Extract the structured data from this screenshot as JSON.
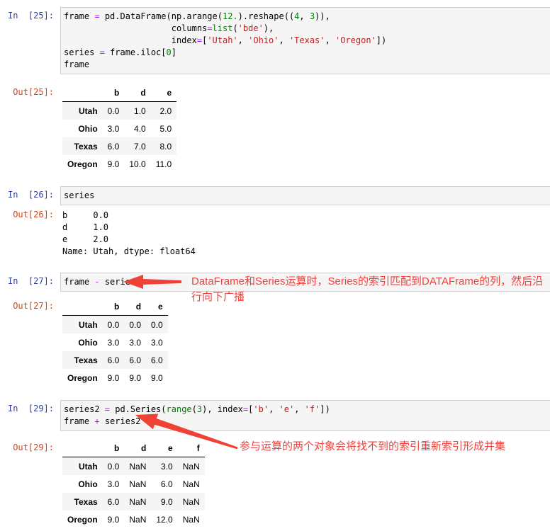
{
  "palette": {
    "in_prompt": "#303F9F",
    "out_prompt": "#D84315",
    "annotation_red": "#f1403b",
    "operator": "#AA22FF",
    "number": "#008000",
    "builtin": "#008000",
    "string": "#BA2121",
    "input_bg": "#f5f5f5",
    "input_border": "#cfcfcf",
    "row_stripe": "#f5f5f5"
  },
  "cells": [
    {
      "prompt": "In  [25]:",
      "code": [
        [
          [
            "frame ",
            "n"
          ],
          [
            "=",
            "o"
          ],
          [
            " pd.DataFrame(np.arange(",
            "n"
          ],
          [
            "12.",
            "m"
          ],
          [
            ").reshape((",
            "n"
          ],
          [
            "4",
            "m"
          ],
          [
            ", ",
            "n"
          ],
          [
            "3",
            "m"
          ],
          [
            ")),",
            "n"
          ]
        ],
        [
          [
            "                     columns",
            "n"
          ],
          [
            "=",
            "o"
          ],
          [
            "list",
            "b"
          ],
          [
            "(",
            "n"
          ],
          [
            "'bde'",
            "s"
          ],
          [
            "),",
            "n"
          ]
        ],
        [
          [
            "                     index",
            "n"
          ],
          [
            "=",
            "o"
          ],
          [
            "[",
            "n"
          ],
          [
            "'Utah'",
            "s"
          ],
          [
            ", ",
            "n"
          ],
          [
            "'Ohio'",
            "s"
          ],
          [
            ", ",
            "n"
          ],
          [
            "'Texas'",
            "s"
          ],
          [
            ", ",
            "n"
          ],
          [
            "'Oregon'",
            "s"
          ],
          [
            "])",
            "n"
          ]
        ],
        [
          [
            "series ",
            "n"
          ],
          [
            "=",
            "o"
          ],
          [
            " frame.iloc[",
            "n"
          ],
          [
            "0",
            "m"
          ],
          [
            "]",
            "n"
          ]
        ],
        [
          [
            "frame",
            "n"
          ]
        ]
      ]
    },
    {
      "prompt": "Out[25]:",
      "table": {
        "columns": [
          "b",
          "d",
          "e"
        ],
        "rows": [
          {
            "index": "Utah",
            "values": [
              "0.0",
              "1.0",
              "2.0"
            ]
          },
          {
            "index": "Ohio",
            "values": [
              "3.0",
              "4.0",
              "5.0"
            ]
          },
          {
            "index": "Texas",
            "values": [
              "6.0",
              "7.0",
              "8.0"
            ]
          },
          {
            "index": "Oregon",
            "values": [
              "9.0",
              "10.0",
              "11.0"
            ]
          }
        ]
      }
    },
    {
      "prompt": "In  [26]:",
      "code": [
        [
          [
            "series",
            "n"
          ]
        ]
      ]
    },
    {
      "prompt": "Out[26]:",
      "lines": [
        "b     0.0",
        "d     1.0",
        "e     2.0",
        "Name: Utah, dtype: float64"
      ]
    },
    {
      "prompt": "In  [27]:",
      "code": [
        [
          [
            "frame ",
            "n"
          ],
          [
            "-",
            "o"
          ],
          [
            " series",
            "n"
          ]
        ]
      ]
    },
    {
      "prompt": "Out[27]:",
      "table": {
        "columns": [
          "b",
          "d",
          "e"
        ],
        "rows": [
          {
            "index": "Utah",
            "values": [
              "0.0",
              "0.0",
              "0.0"
            ]
          },
          {
            "index": "Ohio",
            "values": [
              "3.0",
              "3.0",
              "3.0"
            ]
          },
          {
            "index": "Texas",
            "values": [
              "6.0",
              "6.0",
              "6.0"
            ]
          },
          {
            "index": "Oregon",
            "values": [
              "9.0",
              "9.0",
              "9.0"
            ]
          }
        ]
      }
    },
    {
      "prompt": "In  [29]:",
      "code": [
        [
          [
            "series2 ",
            "n"
          ],
          [
            "=",
            "o"
          ],
          [
            " pd.Series(",
            "n"
          ],
          [
            "range",
            "b"
          ],
          [
            "(",
            "n"
          ],
          [
            "3",
            "m"
          ],
          [
            "), index",
            "n"
          ],
          [
            "=",
            "o"
          ],
          [
            "[",
            "n"
          ],
          [
            "'b'",
            "s"
          ],
          [
            ", ",
            "n"
          ],
          [
            "'e'",
            "s"
          ],
          [
            ", ",
            "n"
          ],
          [
            "'f'",
            "s"
          ],
          [
            "])",
            "n"
          ]
        ],
        [
          [
            "frame ",
            "n"
          ],
          [
            "+",
            "o"
          ],
          [
            " series2",
            "n"
          ]
        ]
      ]
    },
    {
      "prompt": "Out[29]:",
      "table": {
        "columns": [
          "b",
          "d",
          "e",
          "f"
        ],
        "rows": [
          {
            "index": "Utah",
            "values": [
              "0.0",
              "NaN",
              "3.0",
              "NaN"
            ]
          },
          {
            "index": "Ohio",
            "values": [
              "3.0",
              "NaN",
              "6.0",
              "NaN"
            ]
          },
          {
            "index": "Texas",
            "values": [
              "6.0",
              "NaN",
              "9.0",
              "NaN"
            ]
          },
          {
            "index": "Oregon",
            "values": [
              "9.0",
              "NaN",
              "12.0",
              "NaN"
            ]
          }
        ]
      }
    }
  ],
  "annotations": {
    "broadcast": "DataFrame和Series运算时，Series的索引匹配到DATAFrame的列，然后沿行向下广播",
    "union": "参与运算的两个对象会将找不到的索引重新索引形成并集"
  }
}
